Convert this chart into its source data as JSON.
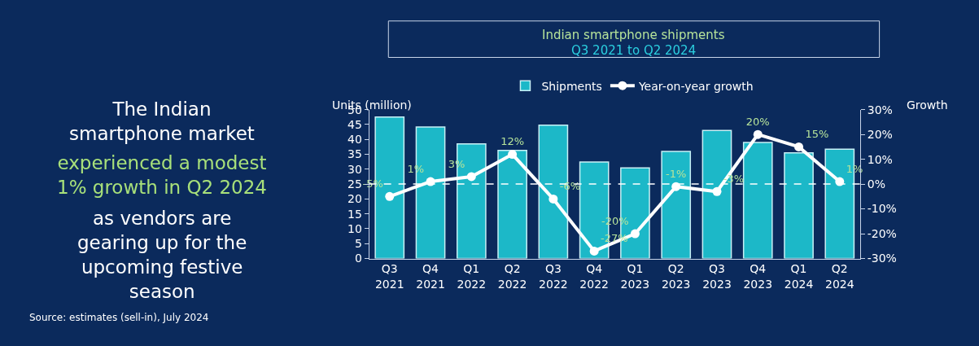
{
  "chart_data": {
    "type": "bar",
    "title": "Indian smartphone shipments",
    "subtitle": "Q3 2021 to Q2 2024",
    "ylabel": "Units (million)",
    "y2label": "Growth",
    "categories": [
      "Q3 2021",
      "Q4 2021",
      "Q1 2022",
      "Q2 2022",
      "Q3 2022",
      "Q4 2022",
      "Q1 2023",
      "Q2 2023",
      "Q3 2023",
      "Q4 2023",
      "Q1 2024",
      "Q2 2024"
    ],
    "series": [
      {
        "name": "Shipments",
        "color": "#1cb8c8",
        "values": [
          47.5,
          44.2,
          38.5,
          36.3,
          44.8,
          32.4,
          30.4,
          36.0,
          43.0,
          39.0,
          35.5,
          36.7
        ]
      },
      {
        "name": "Year-on-year growth",
        "type": "line",
        "axis": "y2",
        "color": "#ffffff",
        "marker": "circle",
        "value_labels": [
          "-5%",
          "1%",
          "3%",
          "12%",
          "-6%",
          "-27%",
          "-20%",
          "-1%",
          "-3%",
          "20%",
          "15%",
          "1%"
        ],
        "values": [
          -5,
          1,
          3,
          12,
          -6,
          -27,
          -20,
          -1,
          -3,
          20,
          15,
          1
        ]
      }
    ],
    "ylim": [
      0,
      50
    ],
    "yticks": [
      0,
      5,
      10,
      15,
      20,
      25,
      30,
      35,
      40,
      45,
      50
    ],
    "y2lim": [
      -30,
      30
    ],
    "y2ticks": [
      {
        "value": -30,
        "label": "-30%"
      },
      {
        "value": -20,
        "label": "-20%"
      },
      {
        "value": -10,
        "label": "-10%"
      },
      {
        "value": 0,
        "label": "0%"
      },
      {
        "value": 10,
        "label": "10%"
      },
      {
        "value": 20,
        "label": "20%"
      },
      {
        "value": 30,
        "label": "30%"
      }
    ],
    "ref_lines": [
      {
        "axis": "y2",
        "value": 0,
        "color": "#ffffff",
        "line_style": "dashed"
      }
    ],
    "grid": false,
    "legend": "top",
    "annotations": [
      "The Indian smartphone market",
      "experienced a modest 1% growth in Q2 2024",
      "as vendors are gearing up for the upcoming festive season",
      "Source: estimates (sell-in), July 2024"
    ]
  }
}
